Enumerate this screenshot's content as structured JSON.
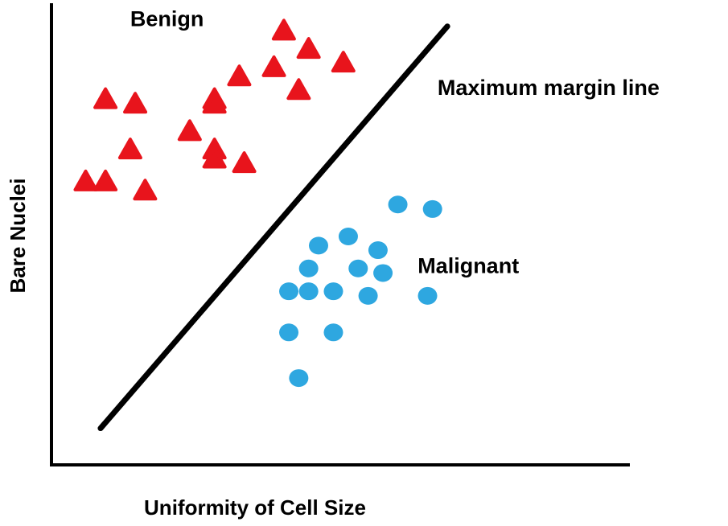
{
  "chart_data": {
    "type": "scatter",
    "title": "",
    "xlabel": "Uniformity of Cell Size",
    "ylabel": "Bare Nuclei",
    "xlim": [
      0,
      10
    ],
    "ylim": [
      0,
      10
    ],
    "grid": false,
    "legend": "none",
    "series": [
      {
        "name": "Benign",
        "marker": "triangle",
        "color": "#e8141c",
        "points": [
          {
            "x": 4.3,
            "y": 9.5
          },
          {
            "x": 4.8,
            "y": 9.1
          },
          {
            "x": 5.5,
            "y": 8.8
          },
          {
            "x": 4.1,
            "y": 8.7
          },
          {
            "x": 3.4,
            "y": 8.5
          },
          {
            "x": 4.6,
            "y": 8.2
          },
          {
            "x": 0.7,
            "y": 8.0
          },
          {
            "x": 1.3,
            "y": 7.9
          },
          {
            "x": 2.9,
            "y": 8.0
          },
          {
            "x": 2.9,
            "y": 7.9
          },
          {
            "x": 2.4,
            "y": 7.3
          },
          {
            "x": 2.9,
            "y": 6.9
          },
          {
            "x": 2.9,
            "y": 6.7
          },
          {
            "x": 3.5,
            "y": 6.6
          },
          {
            "x": 1.2,
            "y": 6.9
          },
          {
            "x": 0.3,
            "y": 6.2
          },
          {
            "x": 0.7,
            "y": 6.2
          },
          {
            "x": 1.5,
            "y": 6.0
          }
        ]
      },
      {
        "name": "Malignant",
        "marker": "circle",
        "color": "#2ea7e0",
        "points": [
          {
            "x": 6.6,
            "y": 5.7
          },
          {
            "x": 7.3,
            "y": 5.6
          },
          {
            "x": 5.6,
            "y": 5.0
          },
          {
            "x": 5.0,
            "y": 4.8
          },
          {
            "x": 6.2,
            "y": 4.7
          },
          {
            "x": 4.8,
            "y": 4.3
          },
          {
            "x": 5.8,
            "y": 4.3
          },
          {
            "x": 6.3,
            "y": 4.2
          },
          {
            "x": 4.4,
            "y": 3.8
          },
          {
            "x": 5.3,
            "y": 3.8
          },
          {
            "x": 4.8,
            "y": 3.8
          },
          {
            "x": 6.0,
            "y": 3.7
          },
          {
            "x": 7.2,
            "y": 3.7
          },
          {
            "x": 4.4,
            "y": 2.9
          },
          {
            "x": 5.3,
            "y": 2.9
          },
          {
            "x": 4.6,
            "y": 1.9
          }
        ]
      }
    ],
    "decision_line": {
      "label": "Maximum margin line",
      "from": {
        "x": 0.6,
        "y": 0.8
      },
      "to": {
        "x": 7.6,
        "y": 9.6
      }
    },
    "annotations": [
      {
        "text": "Benign",
        "x": 1.2,
        "y": 9.6
      },
      {
        "text": "Maximum margin line",
        "x": 7.4,
        "y": 8.1
      },
      {
        "text": "Malignant",
        "x": 7.0,
        "y": 4.2
      }
    ]
  }
}
